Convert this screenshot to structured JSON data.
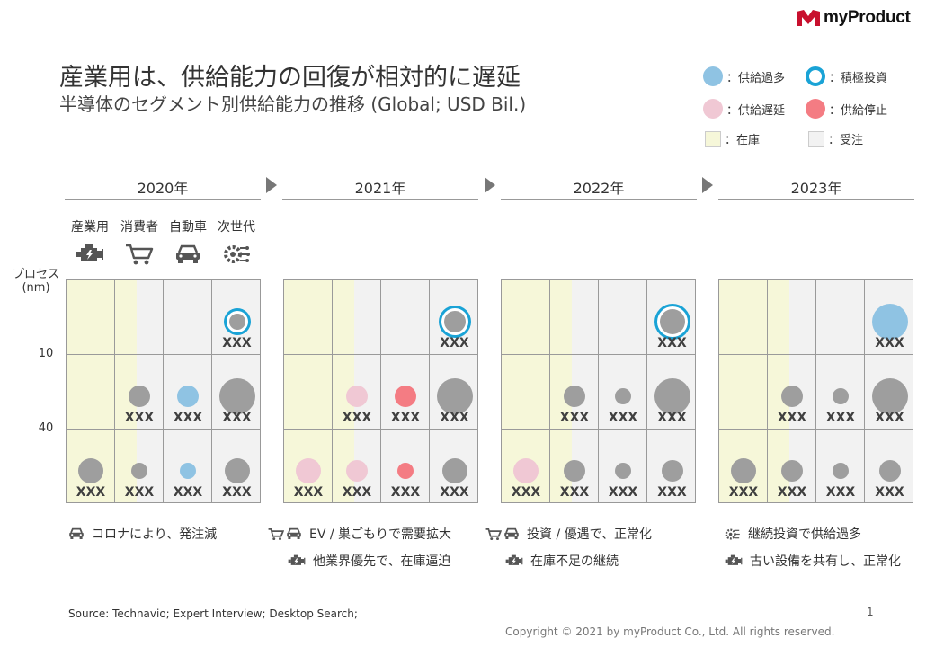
{
  "brand": {
    "name": "myProduct",
    "mark_color": "#c8102e"
  },
  "title": "産業用は、供給能力の回復が相対的に遅延",
  "subtitle": "半導体のセグメント別供給能力の推移 (Global; USD Bil.)",
  "legend": [
    {
      "id": "oversupply",
      "label": "：供給過多",
      "color": "#8fc3e3",
      "shape": "circle"
    },
    {
      "id": "invest",
      "label": "：積極投資",
      "color": "#1aa3d6",
      "shape": "ring"
    },
    {
      "id": "delay",
      "label": "：供給遅延",
      "color": "#f0c8d4",
      "shape": "circle"
    },
    {
      "id": "stop",
      "label": "：供給停止",
      "color": "#f47c83",
      "shape": "circle"
    },
    {
      "id": "stock",
      "label": "：在庫",
      "color": "#f6f7d9",
      "shape": "square"
    },
    {
      "id": "order",
      "label": "：受注",
      "color": "#f2f2f2",
      "shape": "square"
    }
  ],
  "categories": [
    {
      "label": "産業用",
      "icon": "engine-icon"
    },
    {
      "label": "消費者",
      "icon": "cart-icon"
    },
    {
      "label": "自動車",
      "icon": "car-icon"
    },
    {
      "label": "次世代",
      "icon": "gear-chip-icon"
    }
  ],
  "axis": {
    "title_line1": "プロセス",
    "title_line2": "(nm)",
    "ticks": [
      "10",
      "40"
    ]
  },
  "colors": {
    "gray": "#9e9e9e",
    "blue": "#8fc3e3",
    "ring": "#1aa3d6",
    "pink": "#f0c8d4",
    "red": "#f47c83",
    "stock": "#f6f7d9",
    "order": "#f2f2f2",
    "icon": "#555555"
  },
  "panels": [
    {
      "year": "2020年",
      "stock_level": [
        1.0,
        0.45
      ],
      "cells": [
        [
          null,
          null,
          null,
          {
            "size": "s",
            "type": "gray",
            "ring": true,
            "label": "XXX"
          }
        ],
        [
          null,
          {
            "size": "m",
            "type": "gray",
            "label": "XXX"
          },
          {
            "size": "m",
            "type": "blue",
            "label": "XXX"
          },
          {
            "size": "xl",
            "type": "gray",
            "label": "XXX"
          }
        ],
        [
          {
            "size": "l",
            "type": "gray",
            "label": "XXX"
          },
          {
            "size": "s",
            "type": "gray",
            "label": "XXX"
          },
          {
            "size": "s",
            "type": "blue",
            "label": "XXX"
          },
          {
            "size": "l",
            "type": "gray",
            "label": "XXX"
          }
        ]
      ],
      "notes": [
        {
          "icons": [
            "car-icon"
          ],
          "text": "コロナにより、発注減"
        }
      ]
    },
    {
      "year": "2021年",
      "stock_level": [
        1.0,
        0.45
      ],
      "cells": [
        [
          null,
          null,
          null,
          {
            "size": "m",
            "type": "gray",
            "ring": true,
            "label": "XXX"
          }
        ],
        [
          null,
          {
            "size": "m",
            "type": "pink",
            "label": "XXX"
          },
          {
            "size": "m",
            "type": "red",
            "label": "XXX"
          },
          {
            "size": "xl",
            "type": "gray",
            "label": "XXX"
          }
        ],
        [
          {
            "size": "l",
            "type": "pink",
            "label": "XXX"
          },
          {
            "size": "m",
            "type": "pink",
            "label": "XXX"
          },
          {
            "size": "s",
            "type": "red",
            "label": "XXX"
          },
          {
            "size": "l",
            "type": "gray",
            "label": "XXX"
          }
        ]
      ],
      "notes": [
        {
          "icons": [
            "cart-icon",
            "car-icon"
          ],
          "text": "EV / 巣ごもりで需要拡大"
        },
        {
          "icons": [
            "engine-icon"
          ],
          "text": "他業界優先で、在庫逼迫"
        }
      ]
    },
    {
      "year": "2022年",
      "stock_level": [
        1.0,
        0.45
      ],
      "cells": [
        [
          null,
          null,
          null,
          {
            "size": "l",
            "type": "gray",
            "ring": true,
            "label": "XXX"
          }
        ],
        [
          null,
          {
            "size": "m",
            "type": "gray",
            "label": "XXX"
          },
          {
            "size": "s",
            "type": "gray",
            "label": "XXX"
          },
          {
            "size": "xl",
            "type": "gray",
            "label": "XXX"
          }
        ],
        [
          {
            "size": "l",
            "type": "pink",
            "label": "XXX"
          },
          {
            "size": "m",
            "type": "gray",
            "label": "XXX"
          },
          {
            "size": "s",
            "type": "gray",
            "label": "XXX"
          },
          {
            "size": "m",
            "type": "gray",
            "label": "XXX"
          }
        ]
      ],
      "notes": [
        {
          "icons": [
            "cart-icon",
            "car-icon"
          ],
          "text": "投資 / 優遇で、正常化"
        },
        {
          "icons": [
            "engine-icon"
          ],
          "text": "在庫不足の継続"
        }
      ]
    },
    {
      "year": "2023年",
      "stock_level": [
        1.0,
        0.45
      ],
      "cells": [
        [
          null,
          null,
          null,
          {
            "size": "xl",
            "type": "blue",
            "label": "XXX"
          }
        ],
        [
          null,
          {
            "size": "m",
            "type": "gray",
            "label": "XXX"
          },
          {
            "size": "s",
            "type": "gray",
            "label": "XXX"
          },
          {
            "size": "xl",
            "type": "gray",
            "label": "XXX"
          }
        ],
        [
          {
            "size": "l",
            "type": "gray",
            "label": "XXX"
          },
          {
            "size": "m",
            "type": "gray",
            "label": "XXX"
          },
          {
            "size": "s",
            "type": "gray",
            "label": "XXX"
          },
          {
            "size": "m",
            "type": "gray",
            "label": "XXX"
          }
        ]
      ],
      "notes": [
        {
          "icons": [
            "gear-chip-icon"
          ],
          "text": "継続投資で供給過多"
        },
        {
          "icons": [
            "engine-icon"
          ],
          "text": "古い設備を共有し、正常化"
        }
      ]
    }
  ],
  "footer": {
    "source": "Source: Technavio; Expert Interview; Desktop Search;",
    "page_number": "1",
    "copyright": "Copyright © 2021 by myProduct Co., Ltd.  All rights reserved."
  }
}
